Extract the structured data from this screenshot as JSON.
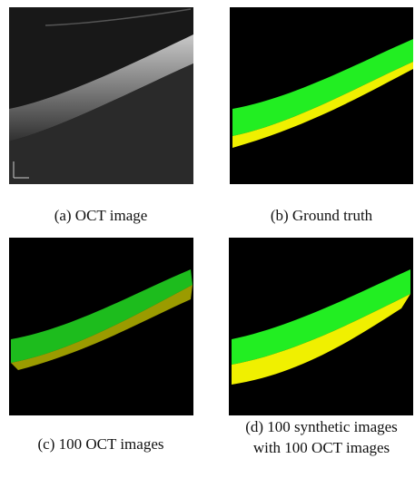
{
  "figure": {
    "panels": [
      {
        "caption": [
          "(a) OCT image"
        ]
      },
      {
        "caption": [
          "(b) Ground truth"
        ]
      },
      {
        "caption": [
          "(c) 100 OCT images"
        ]
      },
      {
        "caption": [
          "(d) 100 synthetic images",
          "with 100 OCT images"
        ]
      }
    ]
  }
}
